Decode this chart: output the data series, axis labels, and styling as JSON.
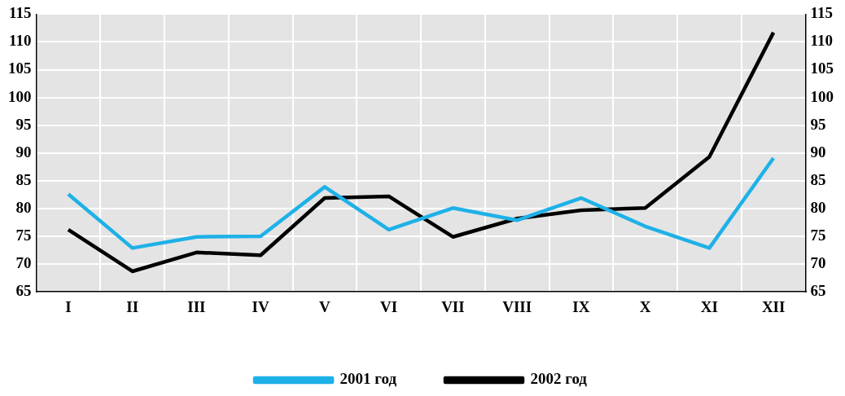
{
  "chart_data": {
    "type": "line",
    "categories": [
      "I",
      "II",
      "III",
      "IV",
      "V",
      "VI",
      "VII",
      "VIII",
      "IX",
      "X",
      "XI",
      "XII"
    ],
    "series": [
      {
        "name": "2001 год",
        "color": "#1eb1e7",
        "values": [
          82.6,
          72.9,
          74.9,
          75.0,
          83.9,
          76.2,
          80.1,
          77.9,
          81.9,
          76.8,
          72.9,
          89.1
        ]
      },
      {
        "name": "2002 год",
        "color": "#000000",
        "values": [
          76.2,
          68.7,
          72.1,
          71.6,
          81.9,
          82.2,
          74.9,
          78.2,
          79.7,
          80.1,
          89.3,
          111.7
        ]
      }
    ],
    "ylim": [
      65,
      115
    ],
    "yticks": [
      65,
      70,
      75,
      80,
      85,
      90,
      95,
      100,
      105,
      110,
      115
    ],
    "y2lim": [
      65,
      115
    ],
    "y2ticks": [
      65,
      70,
      75,
      80,
      85,
      90,
      95,
      100,
      105,
      110,
      115
    ],
    "grid": true,
    "legend": "bottom",
    "marker": "none",
    "line_style": "solid"
  }
}
